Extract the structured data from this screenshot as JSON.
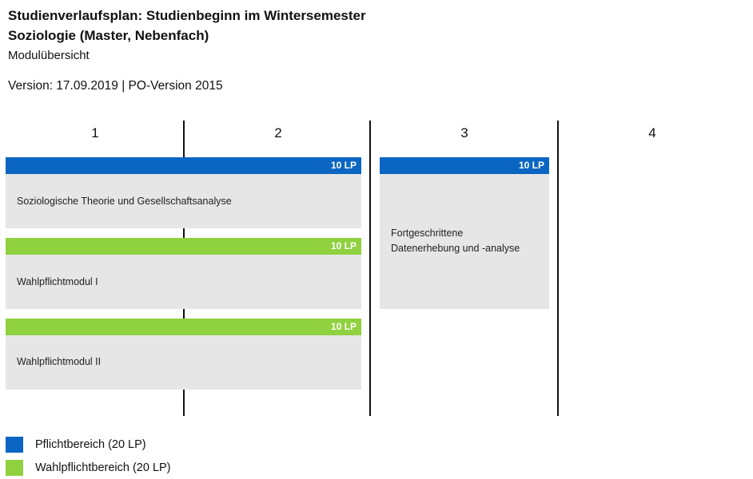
{
  "header": {
    "title_line1": "Studienverlaufsplan: Studienbeginn im Wintersemester",
    "title_line2": "Soziologie (Master, Nebenfach)",
    "subtitle": "Modulübersicht",
    "version": "Version: 17.09.2019  | PO-Version 2015"
  },
  "semesters": [
    "1",
    "2",
    "3",
    "4"
  ],
  "colors": {
    "pflicht": "#0a66c2",
    "wahlpflicht": "#8fd13f",
    "module_bg": "#e6e6e6"
  },
  "modules": [
    {
      "credits": "10 LP",
      "name": "Soziologische Theorie und Gesellschaftsanalyse",
      "category": "pflicht"
    },
    {
      "credits": "10 LP",
      "name": "Wahlpflichtmodul I",
      "category": "wahlpflicht"
    },
    {
      "credits": "10 LP",
      "name": "Wahlpflichtmodul II",
      "category": "wahlpflicht"
    },
    {
      "credits": "10 LP",
      "name": "Fortgeschrittene Datenerhebung und -analyse",
      "category": "pflicht"
    }
  ],
  "legend": [
    {
      "label": "Pflichtbereich (20 LP)",
      "category": "pflicht"
    },
    {
      "label": "Wahlpflichtbereich (20 LP)",
      "category": "wahlpflicht"
    }
  ]
}
